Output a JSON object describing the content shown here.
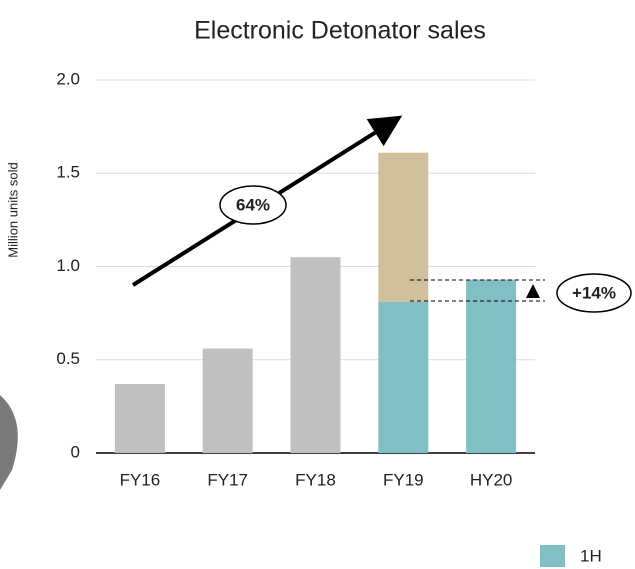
{
  "chart_data": {
    "type": "bar",
    "stacked": true,
    "title": "Electronic Detonator sales",
    "y_label": "Million units sold",
    "categories": [
      "FY16",
      "FY17",
      "FY18",
      "FY19",
      "HY20"
    ],
    "series": [
      {
        "color": "#c0c0c0",
        "values": [
          0.37,
          0.56,
          1.05,
          null,
          null
        ]
      },
      {
        "name": "1H",
        "color": "#82bfc4",
        "values": [
          null,
          null,
          null,
          0.81,
          0.93
        ]
      },
      {
        "color": "#d0c19c",
        "values": [
          null,
          null,
          null,
          0.8,
          null
        ]
      }
    ],
    "ylim": [
      0,
      2
    ],
    "yticks": [
      0,
      0.5,
      {
        "value": 1,
        "label": "1.0"
      },
      1.5,
      {
        "value": 2,
        "label": "2.0"
      }
    ],
    "grid": true,
    "annotations": [
      "64%",
      "+14%"
    ]
  }
}
